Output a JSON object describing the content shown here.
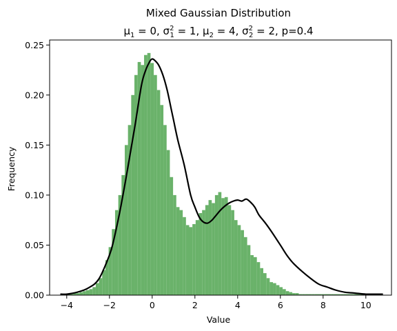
{
  "chart_data": {
    "type": "bar",
    "title": "Mixed Gaussian Distribution",
    "subtitle_parts": [
      "μ",
      "1",
      " = 0, σ",
      "2",
      "1",
      " = 1, μ",
      "2",
      " = 4, σ",
      "2",
      "2",
      " = 2, p=0.4"
    ],
    "xlabel": "Value",
    "ylabel": "Frequency",
    "xlim": [
      -4.8,
      11.2
    ],
    "ylim": [
      0,
      0.255
    ],
    "xticks": [
      -4,
      -2,
      0,
      2,
      4,
      6,
      8,
      10
    ],
    "yticks": [
      0.0,
      0.05,
      0.1,
      0.15,
      0.2,
      0.25
    ],
    "ytick_labels": [
      "0.00",
      "0.05",
      "0.10",
      "0.15",
      "0.20",
      "0.25"
    ],
    "grid": false,
    "colors": {
      "bars": "#6ab26a",
      "curve": "#000000"
    },
    "histogram": {
      "bin_start": -4.3,
      "bin_width": 0.1508,
      "values": [
        0.001,
        0.001,
        0.001,
        0.001,
        0.002,
        0.002,
        0.003,
        0.004,
        0.005,
        0.006,
        0.008,
        0.012,
        0.017,
        0.025,
        0.035,
        0.048,
        0.066,
        0.085,
        0.1,
        0.12,
        0.15,
        0.17,
        0.2,
        0.22,
        0.233,
        0.23,
        0.24,
        0.242,
        0.232,
        0.22,
        0.205,
        0.19,
        0.17,
        0.145,
        0.118,
        0.1,
        0.088,
        0.085,
        0.078,
        0.07,
        0.068,
        0.071,
        0.075,
        0.082,
        0.085,
        0.09,
        0.095,
        0.092,
        0.1,
        0.103,
        0.097,
        0.098,
        0.09,
        0.085,
        0.075,
        0.07,
        0.065,
        0.058,
        0.05,
        0.04,
        0.038,
        0.033,
        0.027,
        0.022,
        0.017,
        0.013,
        0.012,
        0.01,
        0.008,
        0.006,
        0.004,
        0.003,
        0.002,
        0.002,
        0.001,
        0.001,
        0.001,
        0.001,
        0.001,
        0.001,
        0.001,
        0.001,
        0.001,
        0.001,
        0.001,
        0.001,
        0.001,
        0.001,
        0.001,
        0.001,
        0.001,
        0.001,
        0.001,
        0.001,
        0.001,
        0.001,
        0.001,
        0.001,
        0.001,
        0.001
      ]
    },
    "kde": {
      "x": [
        -4.3,
        -4.0,
        -3.5,
        -3.0,
        -2.5,
        -2.0,
        -1.8,
        -1.5,
        -1.2,
        -1.0,
        -0.8,
        -0.5,
        -0.3,
        -0.1,
        0.0,
        0.1,
        0.3,
        0.5,
        0.7,
        0.9,
        1.0,
        1.2,
        1.5,
        1.8,
        2.0,
        2.2,
        2.4,
        2.6,
        2.8,
        3.0,
        3.2,
        3.4,
        3.6,
        3.8,
        4.0,
        4.2,
        4.4,
        4.6,
        4.8,
        5.0,
        5.3,
        5.6,
        6.0,
        6.3,
        6.6,
        7.0,
        7.4,
        7.8,
        8.2,
        8.6,
        9.0,
        9.5,
        10.0,
        10.5,
        10.8
      ],
      "y": [
        0.001,
        0.001,
        0.003,
        0.007,
        0.016,
        0.04,
        0.055,
        0.085,
        0.12,
        0.145,
        0.17,
        0.21,
        0.225,
        0.234,
        0.236,
        0.235,
        0.23,
        0.22,
        0.205,
        0.185,
        0.175,
        0.155,
        0.13,
        0.1,
        0.088,
        0.078,
        0.073,
        0.072,
        0.075,
        0.08,
        0.085,
        0.089,
        0.092,
        0.094,
        0.095,
        0.094,
        0.096,
        0.093,
        0.088,
        0.08,
        0.072,
        0.063,
        0.05,
        0.04,
        0.032,
        0.024,
        0.017,
        0.011,
        0.008,
        0.005,
        0.003,
        0.002,
        0.001,
        0.001,
        0.001
      ]
    }
  }
}
